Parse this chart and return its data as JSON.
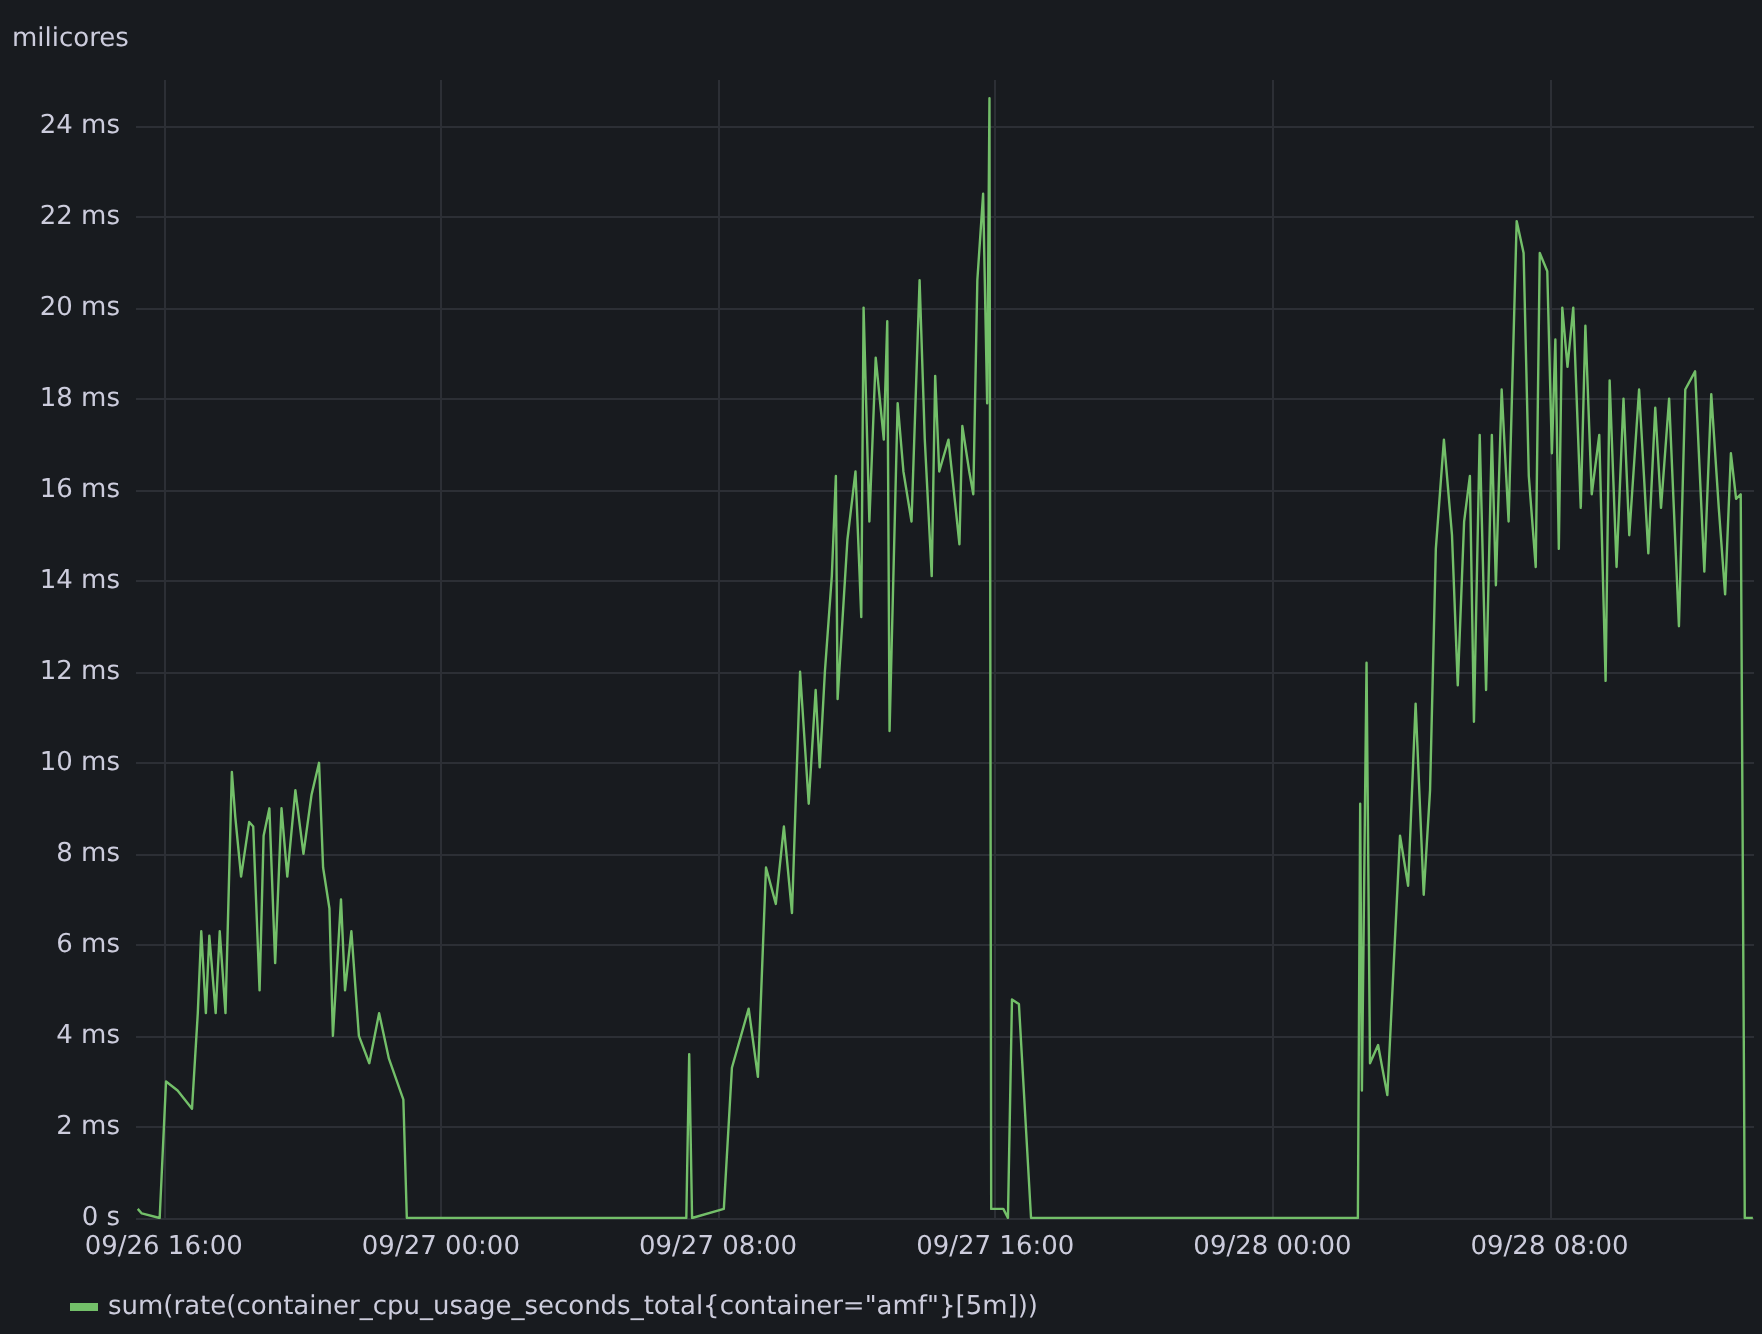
{
  "chart_data": {
    "type": "line",
    "ylabel": "milicores",
    "xlim": [
      "--09-26T15:12",
      "--09-28T13:54"
    ],
    "xticks": [
      {
        "value": "--09-26T16:00",
        "label": "09/26 16:00"
      },
      {
        "value": "--09-27T00:00",
        "label": "09/27 00:00"
      },
      {
        "value": "--09-27T08:00",
        "label": "09/27 08:00"
      },
      {
        "value": "--09-27T16:00",
        "label": "09/27 16:00"
      },
      {
        "value": "--09-28T00:00",
        "label": "09/28 00:00"
      },
      {
        "value": "--09-28T08:00",
        "label": "09/28 08:00"
      }
    ],
    "ylim": [
      0,
      25
    ],
    "yticks": [
      {
        "value": 0,
        "label": "0 s"
      },
      {
        "value": 2,
        "label": "2 ms"
      },
      {
        "value": 4,
        "label": "4 ms"
      },
      {
        "value": 6,
        "label": "6 ms"
      },
      {
        "value": 8,
        "label": "8 ms"
      },
      {
        "value": 10,
        "label": "10 ms"
      },
      {
        "value": 12,
        "label": "12 ms"
      },
      {
        "value": 14,
        "label": "14 ms"
      },
      {
        "value": 16,
        "label": "16 ms"
      },
      {
        "value": 18,
        "label": "18 ms"
      },
      {
        "value": 20,
        "label": "20 ms"
      },
      {
        "value": 22,
        "label": "22 ms"
      },
      {
        "value": 24,
        "label": "24 ms"
      }
    ],
    "grid": true,
    "legend": "bottom left",
    "marker": "none",
    "line_style": "solid",
    "series": [
      {
        "name": "sum(rate(container_cpu_usage_seconds_total{container=\"amf\"}[5m]))",
        "color": "#73bf69",
        "x": [
          "--09-26T15:15",
          "--09-26T15:22",
          "--09-26T15:53",
          "--09-26T16:04",
          "--09-26T16:24",
          "--09-26T16:49",
          "--09-26T16:59",
          "--09-26T17:05",
          "--09-26T17:13",
          "--09-26T17:19",
          "--09-26T17:30",
          "--09-26T17:37",
          "--09-26T17:47",
          "--09-26T17:58",
          "--09-26T18:04",
          "--09-26T18:14",
          "--09-26T18:28",
          "--09-26T18:35",
          "--09-26T18:46",
          "--09-26T18:53",
          "--09-26T19:03",
          "--09-26T19:13",
          "--09-26T19:24",
          "--09-26T19:34",
          "--09-26T19:48",
          "--09-26T20:02",
          "--09-26T20:16",
          "--09-26T20:29",
          "--09-26T20:36",
          "--09-26T20:47",
          "--09-26T20:53",
          "--09-26T21:07",
          "--09-26T21:14",
          "--09-26T21:25",
          "--09-26T21:38",
          "--09-26T21:56",
          "--09-26T22:13",
          "--09-26T22:30",
          "--09-26T22:55",
          "--09-26T23:01",
          "--09-27T07:05",
          "--09-27T07:10",
          "--09-27T07:15",
          "--09-27T08:10",
          "--09-27T08:24",
          "--09-27T08:53",
          "--09-27T09:09",
          "--09-27T09:23",
          "--09-27T09:40",
          "--09-27T09:54",
          "--09-27T10:08",
          "--09-27T10:22",
          "--09-27T10:37",
          "--09-27T10:49",
          "--09-27T10:56",
          "--09-27T11:05",
          "--09-27T11:17",
          "--09-27T11:24",
          "--09-27T11:27",
          "--09-27T11:44",
          "--09-27T11:58",
          "--09-27T12:08",
          "--09-27T12:12",
          "--09-27T12:22",
          "--09-27T12:33",
          "--09-27T12:47",
          "--09-27T12:53",
          "--09-27T12:57",
          "--09-27T13:11",
          "--09-27T13:21",
          "--09-27T13:35",
          "--09-27T13:49",
          "--09-27T13:58",
          "--09-27T14:10",
          "--09-27T14:16",
          "--09-27T14:23",
          "--09-27T14:39",
          "--09-27T14:58",
          "--09-27T15:03",
          "--09-27T15:15",
          "--09-27T15:22",
          "--09-27T15:29",
          "--09-27T15:39",
          "--09-27T15:46",
          "--09-27T15:50",
          "--09-27T15:53",
          "--09-27T16:14",
          "--09-27T16:22",
          "--09-27T16:29",
          "--09-27T16:41",
          "--09-27T17:02",
          "--09-28T02:28",
          "--09-28T02:32",
          "--09-28T02:35",
          "--09-28T02:43",
          "--09-28T02:49",
          "--09-28T03:03",
          "--09-28T03:19",
          "--09-28T03:41",
          "--09-28T03:55",
          "--09-28T04:08",
          "--09-28T04:22",
          "--09-28T04:33",
          "--09-28T04:43",
          "--09-28T04:57",
          "--09-28T05:11",
          "--09-28T05:21",
          "--09-28T05:32",
          "--09-28T05:42",
          "--09-28T05:49",
          "--09-28T05:59",
          "--09-28T06:10",
          "--09-28T06:20",
          "--09-28T06:27",
          "--09-28T06:37",
          "--09-28T06:49",
          "--09-28T07:03",
          "--09-28T07:15",
          "--09-28T07:24",
          "--09-28T07:36",
          "--09-28T07:43",
          "--09-28T07:56",
          "--09-28T08:04",
          "--09-28T08:10",
          "--09-28T08:16",
          "--09-28T08:22",
          "--09-28T08:31",
          "--09-28T08:41",
          "--09-28T08:54",
          "--09-28T09:02",
          "--09-28T09:13",
          "--09-28T09:26",
          "--09-28T09:37",
          "--09-28T09:44",
          "--09-28T09:56",
          "--09-28T10:08",
          "--09-28T10:18",
          "--09-28T10:35",
          "--09-28T10:51",
          "--09-28T11:03",
          "--09-28T11:13",
          "--09-28T11:27",
          "--09-28T11:44",
          "--09-28T11:55",
          "--09-28T12:12",
          "--09-28T12:28",
          "--09-28T12:40",
          "--09-28T12:53",
          "--09-28T13:04",
          "--09-28T13:14",
          "--09-28T13:23",
          "--09-28T13:31",
          "--09-28T13:38",
          "--09-28T13:52"
        ],
        "values": [
          0.2,
          0.1,
          0,
          3.0,
          2.8,
          2.4,
          4.5,
          6.3,
          4.5,
          6.2,
          4.5,
          6.3,
          4.5,
          9.8,
          8.8,
          7.5,
          8.7,
          8.6,
          5.0,
          8.4,
          9.0,
          5.6,
          9.0,
          7.5,
          9.4,
          8.0,
          9.3,
          10.0,
          7.7,
          6.8,
          4.0,
          7.0,
          5.0,
          6.3,
          4.0,
          3.4,
          4.5,
          3.5,
          2.6,
          0,
          0,
          3.6,
          0,
          0.2,
          3.3,
          4.6,
          3.1,
          7.7,
          6.9,
          8.6,
          6.7,
          12.0,
          9.1,
          11.6,
          9.9,
          12.0,
          14.1,
          16.3,
          11.4,
          14.9,
          16.4,
          13.2,
          20.0,
          15.3,
          18.9,
          17.1,
          19.7,
          10.7,
          17.9,
          16.4,
          15.3,
          20.6,
          17.1,
          14.1,
          18.5,
          16.4,
          17.1,
          14.8,
          17.4,
          16.4,
          15.9,
          20.6,
          22.5,
          17.9,
          24.6,
          0.2,
          0.2,
          0,
          4.8,
          4.7,
          0,
          0,
          9.1,
          2.8,
          12.2,
          3.4,
          3.8,
          2.7,
          8.4,
          7.3,
          11.3,
          7.1,
          9.4,
          14.7,
          17.1,
          15.0,
          11.7,
          15.3,
          16.3,
          10.9,
          17.2,
          11.6,
          17.2,
          13.9,
          18.2,
          15.3,
          21.9,
          21.2,
          16.3,
          14.3,
          21.2,
          20.8,
          16.8,
          19.3,
          14.7,
          20.0,
          18.7,
          20.0,
          15.6,
          19.6,
          15.9,
          17.2,
          11.8,
          18.4,
          14.3,
          18.0,
          15.0,
          18.2,
          14.6,
          17.8,
          15.6,
          18.0,
          13.0,
          18.2,
          18.6,
          14.2,
          18.1,
          15.6,
          13.7,
          16.8,
          15.8,
          15.9,
          0,
          0
        ]
      }
    ]
  }
}
